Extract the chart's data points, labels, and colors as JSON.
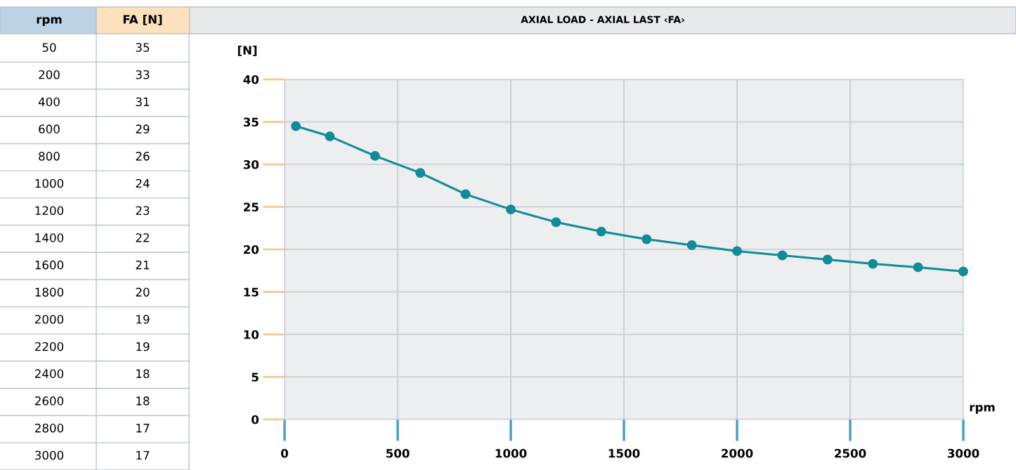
{
  "chart_data": [
    {
      "type": "other",
      "annotations": [
        "rpm",
        "FA [N]"
      ],
      "categories": [
        "50",
        "200",
        "400",
        "600",
        "800",
        "1000",
        "1200",
        "1400",
        "1600",
        "1800",
        "2000",
        "2200",
        "2400",
        "2600",
        "2800",
        "3000"
      ],
      "values": [
        35,
        33,
        31,
        29,
        26,
        24,
        23,
        22,
        21,
        20,
        19,
        19,
        18,
        18,
        17,
        17
      ],
      "data_labels": true
    },
    {
      "type": "line",
      "title": "AXIAL LOAD - AXIAL LAST ‹FA›",
      "xlabel": "rpm",
      "ylabel": "[N]",
      "x": [
        50,
        200,
        400,
        600,
        800,
        1000,
        1200,
        1400,
        1600,
        1800,
        2000,
        2200,
        2400,
        2600,
        2800,
        3000
      ],
      "series": [
        {
          "color": "#0f8c96",
          "values": [
            34.5,
            33.3,
            31.0,
            29.0,
            26.5,
            24.7,
            23.2,
            22.1,
            21.2,
            20.5,
            19.8,
            19.3,
            18.8,
            18.3,
            17.9,
            17.4
          ]
        }
      ],
      "xlim": [
        0,
        3000
      ],
      "xticks": [
        0,
        500,
        1000,
        1500,
        2000,
        2500,
        3000
      ],
      "ylim": [
        0,
        40
      ],
      "yticks": [
        0,
        5,
        10,
        15,
        20,
        25,
        30,
        35,
        40
      ],
      "grid": true,
      "marker": "circle",
      "line_style": "solid"
    }
  ]
}
